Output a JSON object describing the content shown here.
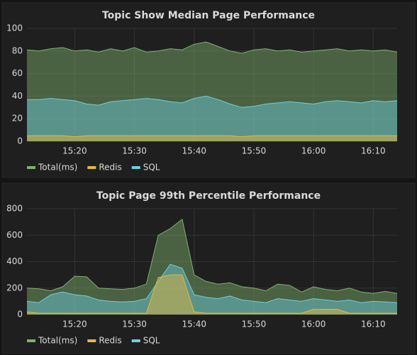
{
  "chart_data": [
    {
      "type": "area",
      "title": "Topic Show Median Page Performance",
      "x": [
        "15:12",
        "15:14",
        "15:16",
        "15:18",
        "15:20",
        "15:22",
        "15:24",
        "15:26",
        "15:28",
        "15:30",
        "15:32",
        "15:34",
        "15:36",
        "15:38",
        "15:40",
        "15:42",
        "15:44",
        "15:46",
        "15:48",
        "15:50",
        "15:52",
        "15:54",
        "15:56",
        "15:58",
        "16:00",
        "16:02",
        "16:04",
        "16:06",
        "16:08",
        "16:10",
        "16:12",
        "16:14"
      ],
      "series": [
        {
          "name": "Total(ms)",
          "color": "#7eb26d",
          "values": [
            81,
            80,
            82,
            83,
            80,
            81,
            79,
            82,
            80,
            83,
            79,
            80,
            82,
            81,
            86,
            88,
            84,
            80,
            78,
            81,
            82,
            80,
            81,
            79,
            80,
            81,
            82,
            80,
            81,
            80,
            81,
            79
          ]
        },
        {
          "name": "Redis",
          "color": "#eab839",
          "values": [
            5,
            5,
            5,
            5,
            4,
            5,
            5,
            5,
            5,
            5,
            5,
            5,
            5,
            5,
            5,
            5,
            5,
            5,
            4,
            5,
            5,
            5,
            5,
            5,
            5,
            5,
            5,
            5,
            5,
            5,
            5,
            5
          ]
        },
        {
          "name": "SQL",
          "color": "#6ed0e0",
          "values": [
            37,
            37,
            38,
            37,
            36,
            33,
            32,
            35,
            36,
            37,
            38,
            37,
            35,
            34,
            38,
            40,
            37,
            33,
            30,
            31,
            33,
            34,
            35,
            34,
            33,
            35,
            36,
            35,
            34,
            36,
            35,
            36
          ]
        }
      ],
      "xlim": [
        "15:12",
        "16:14"
      ],
      "xticks": [
        "15:20",
        "15:30",
        "15:40",
        "15:50",
        "16:00",
        "16:10"
      ],
      "ylim": [
        0,
        100
      ],
      "yticks": [
        0,
        20,
        40,
        60,
        80,
        100
      ],
      "grid": true,
      "legend": "bottom"
    },
    {
      "type": "area",
      "title": "Topic Page 99th Percentile Performance",
      "x": [
        "15:12",
        "15:14",
        "15:16",
        "15:18",
        "15:20",
        "15:22",
        "15:24",
        "15:26",
        "15:28",
        "15:30",
        "15:32",
        "15:34",
        "15:36",
        "15:38",
        "15:40",
        "15:42",
        "15:44",
        "15:46",
        "15:48",
        "15:50",
        "15:52",
        "15:54",
        "15:56",
        "15:58",
        "16:00",
        "16:02",
        "16:04",
        "16:06",
        "16:08",
        "16:10",
        "16:12",
        "16:14"
      ],
      "series": [
        {
          "name": "Total(ms)",
          "color": "#7eb26d",
          "values": [
            200,
            195,
            180,
            210,
            290,
            285,
            200,
            195,
            190,
            200,
            230,
            600,
            650,
            720,
            300,
            250,
            230,
            240,
            210,
            200,
            180,
            230,
            220,
            170,
            210,
            190,
            180,
            200,
            170,
            160,
            175,
            160
          ]
        },
        {
          "name": "Redis",
          "color": "#eab839",
          "values": [
            20,
            10,
            10,
            10,
            10,
            10,
            10,
            10,
            10,
            10,
            10,
            280,
            300,
            300,
            20,
            10,
            10,
            10,
            10,
            10,
            10,
            10,
            10,
            10,
            40,
            40,
            40,
            10,
            10,
            10,
            10,
            10
          ]
        },
        {
          "name": "SQL",
          "color": "#6ed0e0",
          "values": [
            100,
            90,
            150,
            170,
            150,
            140,
            110,
            100,
            95,
            100,
            120,
            250,
            380,
            350,
            150,
            130,
            120,
            140,
            110,
            100,
            90,
            120,
            110,
            100,
            120,
            110,
            100,
            110,
            90,
            100,
            95,
            90
          ]
        }
      ],
      "xlim": [
        "15:12",
        "16:14"
      ],
      "xticks": [
        "15:20",
        "15:30",
        "15:40",
        "15:50",
        "16:00",
        "16:10"
      ],
      "ylim": [
        0,
        800
      ],
      "yticks": [
        0,
        200,
        400,
        600,
        800
      ],
      "grid": true,
      "legend": "bottom"
    }
  ]
}
